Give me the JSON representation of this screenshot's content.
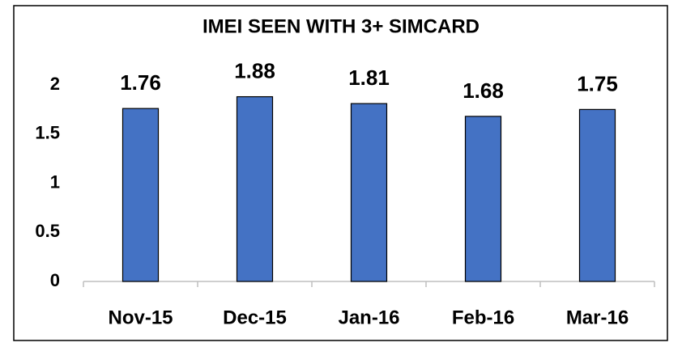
{
  "chart_data": {
    "type": "bar",
    "title": "IMEI SEEN WITH 3+ SIMCARD",
    "categories": [
      "Nov-15",
      "Dec-15",
      "Jan-16",
      "Feb-16",
      "Mar-16"
    ],
    "values": [
      1.76,
      1.88,
      1.81,
      1.68,
      1.75
    ],
    "color": "#4472c4",
    "ylim": [
      0,
      2
    ],
    "yticks": [
      0,
      0.5,
      1,
      1.5,
      2
    ],
    "grid": false
  }
}
